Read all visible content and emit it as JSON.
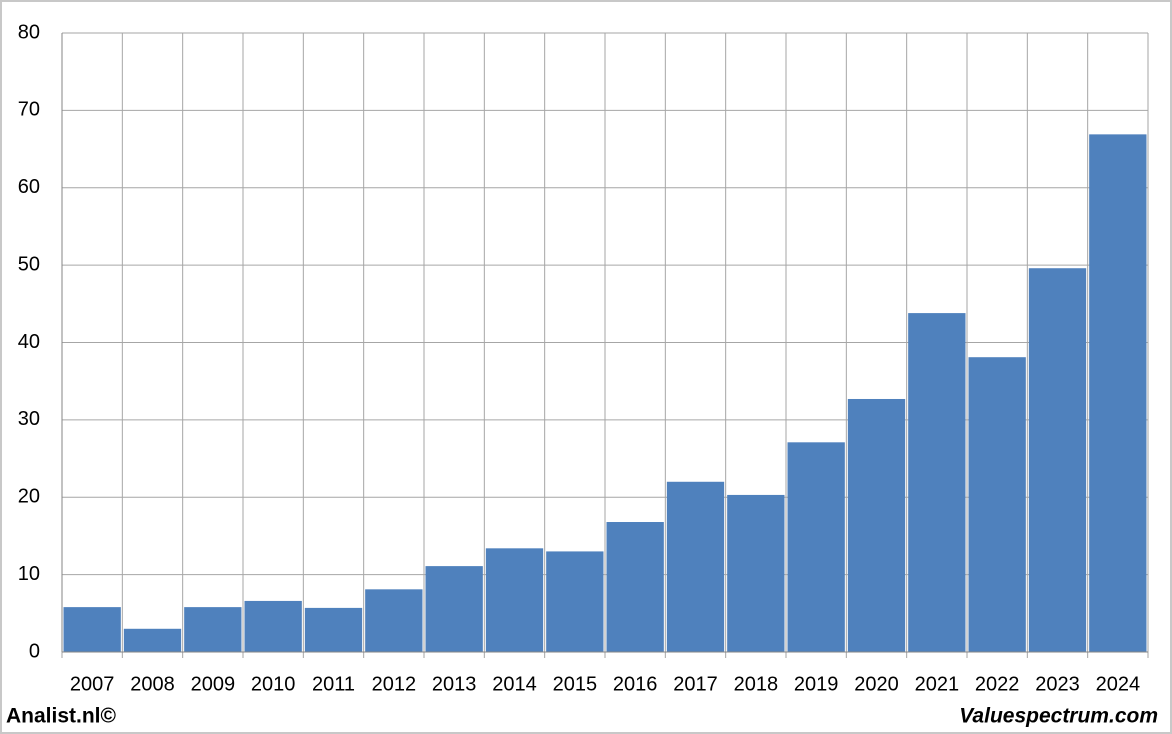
{
  "chart_data": {
    "type": "bar",
    "categories": [
      "2007",
      "2008",
      "2009",
      "2010",
      "2011",
      "2012",
      "2013",
      "2014",
      "2015",
      "2016",
      "2017",
      "2018",
      "2019",
      "2020",
      "2021",
      "2022",
      "2023",
      "2024"
    ],
    "values": [
      5.8,
      3.0,
      5.8,
      6.6,
      5.7,
      8.1,
      11.1,
      13.4,
      13.0,
      16.8,
      22.0,
      20.3,
      27.1,
      32.7,
      43.8,
      38.1,
      49.6,
      66.9
    ],
    "color": "#4f81bd",
    "ylim": [
      0,
      80
    ],
    "yticks": [
      0,
      10,
      20,
      30,
      40,
      50,
      60,
      70,
      80
    ],
    "grid": true
  },
  "footer": {
    "left": "Analist.nl©",
    "right": "Valuespectrum.com"
  }
}
